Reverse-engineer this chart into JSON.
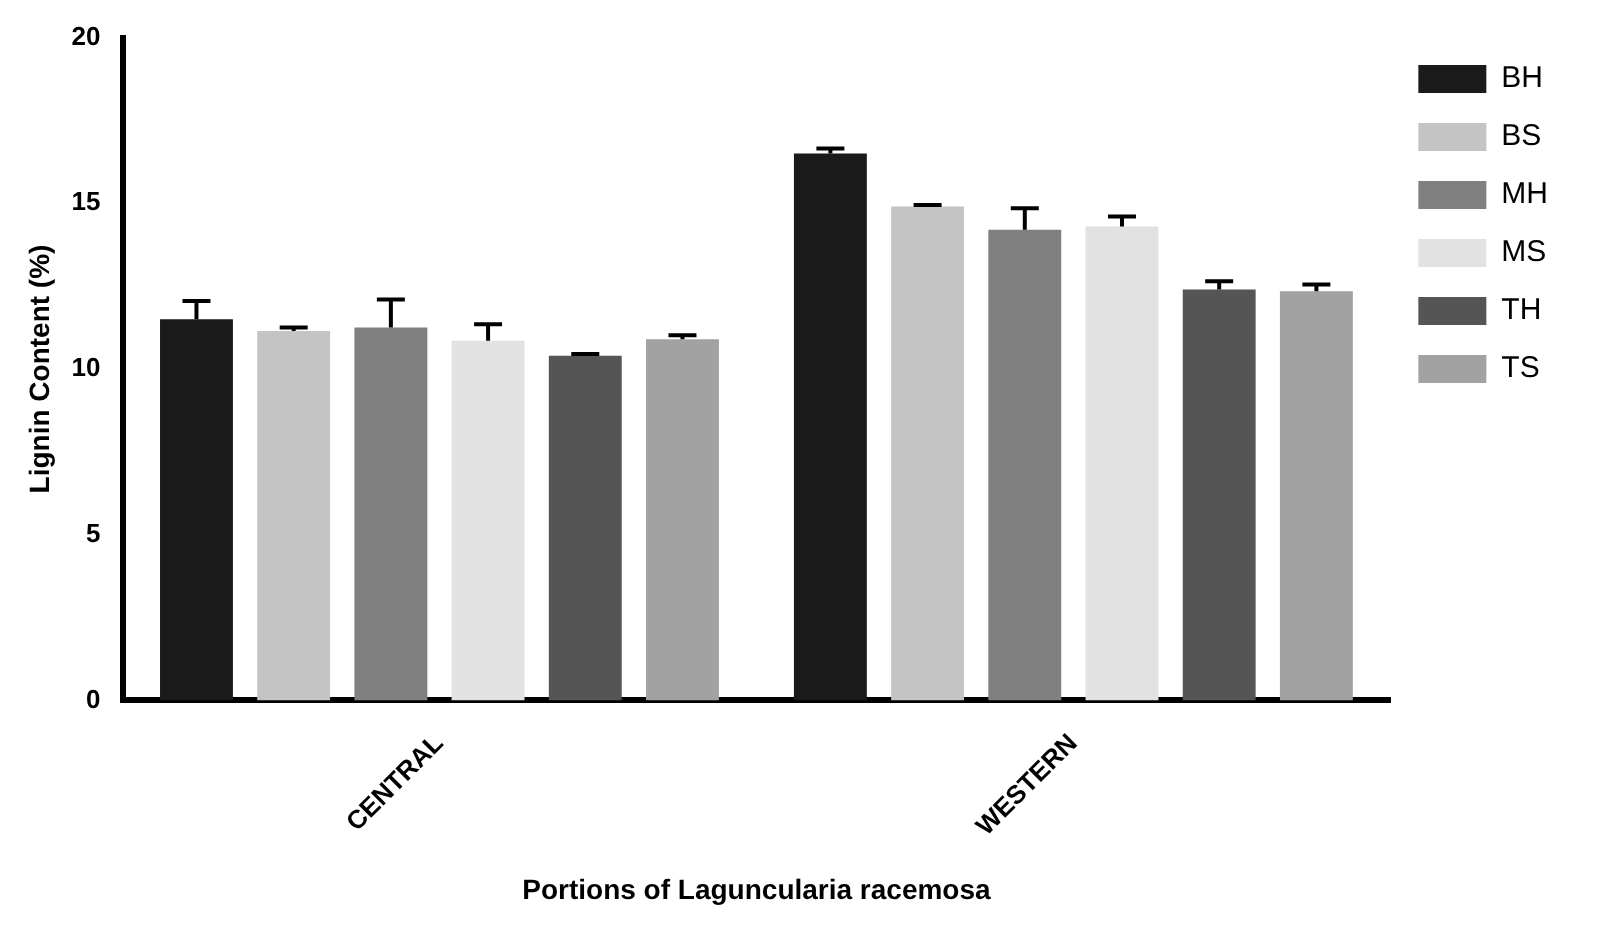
{
  "chart_data": {
    "type": "bar",
    "xlabel": "Portions of Laguncularia racemosa",
    "ylabel": "Lignin Content (%)",
    "categories": [
      "CENTRAL",
      "WESTERN"
    ],
    "series": [
      {
        "name": "BH",
        "color": "#1a1a1a",
        "values": [
          11.5,
          16.5
        ],
        "errors": [
          0.55,
          0.15
        ]
      },
      {
        "name": "BS",
        "color": "#c4c4c4",
        "values": [
          11.15,
          14.9
        ],
        "errors": [
          0.1,
          0.05
        ]
      },
      {
        "name": "MH",
        "color": "#808080",
        "values": [
          11.25,
          14.2
        ],
        "errors": [
          0.85,
          0.65
        ]
      },
      {
        "name": "MS",
        "color": "#e2e2e2",
        "values": [
          10.85,
          14.3
        ],
        "errors": [
          0.5,
          0.3
        ]
      },
      {
        "name": "TH",
        "color": "#555555",
        "values": [
          10.4,
          12.4
        ],
        "errors": [
          0.05,
          0.25
        ]
      },
      {
        "name": "TS",
        "color": "#a2a2a2",
        "values": [
          10.9,
          12.35
        ],
        "errors": [
          0.12,
          0.2
        ]
      }
    ],
    "ylim": [
      0,
      20
    ],
    "yticks": [
      0,
      5,
      10,
      15,
      20
    ],
    "grid": false,
    "legend": "right"
  }
}
